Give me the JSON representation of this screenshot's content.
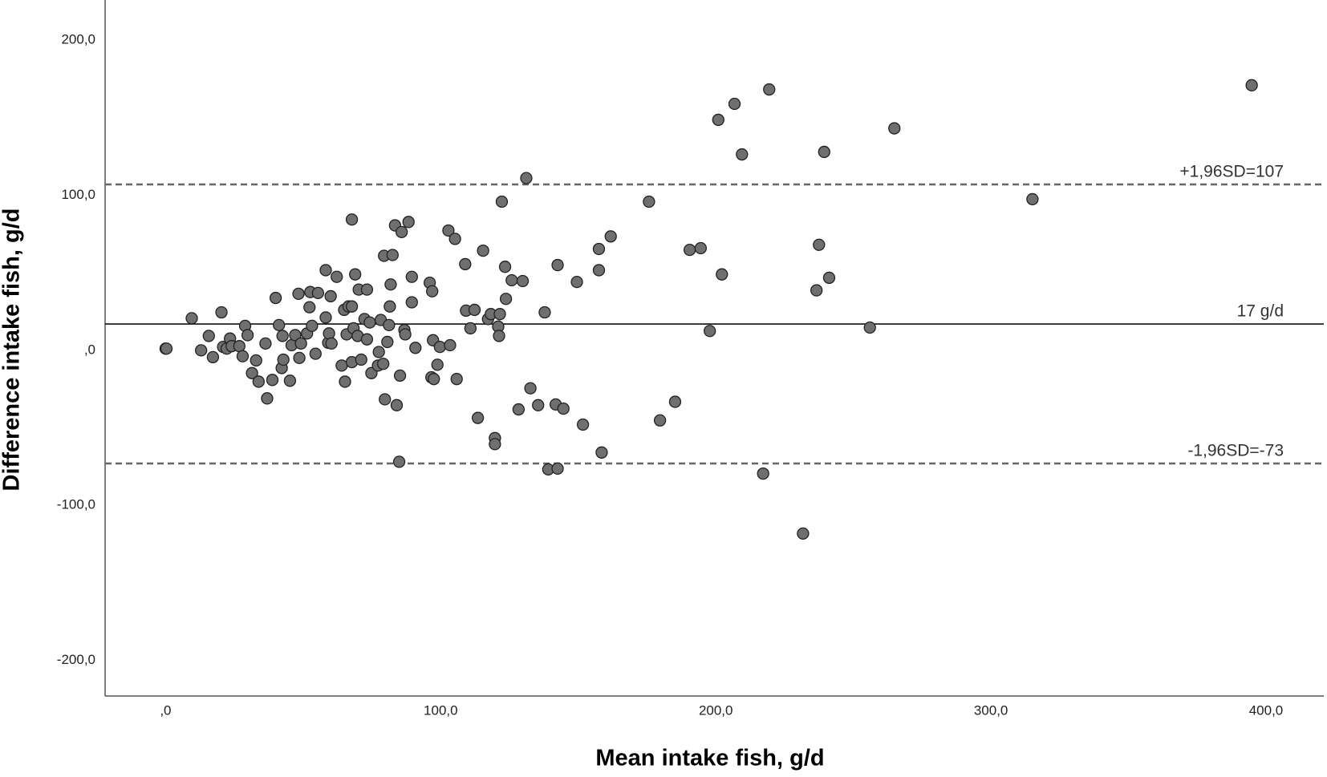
{
  "chart_data": {
    "type": "scatter",
    "x_label": "Mean intake fish, g/d",
    "y_label": "Difference intake fish, g/d",
    "color": "#6f6f6f",
    "xlim": [
      -22,
      421
    ],
    "ylim": [
      -223,
      226
    ],
    "xticks": [
      {
        "value": 0,
        "label": ",0"
      },
      {
        "value": 100,
        "label": "100,0"
      },
      {
        "value": 200,
        "label": "200,0"
      },
      {
        "value": 300,
        "label": "300,0"
      },
      {
        "value": 400,
        "label": "400,0"
      }
    ],
    "yticks": [
      {
        "value": -200,
        "label": "-200,0"
      },
      {
        "value": -100,
        "label": "-100,0"
      },
      {
        "value": 0,
        "label": ",0"
      },
      {
        "value": 100,
        "label": "100,0"
      },
      {
        "value": 200,
        "label": "200,0"
      }
    ],
    "reference_lines": [
      {
        "value": 107,
        "label": "+1,96SD=107",
        "style": "dashed"
      },
      {
        "value": 17,
        "label": "17 g/d",
        "style": "solid"
      },
      {
        "value": -73,
        "label": "-1,96SD=-73",
        "style": "dashed"
      }
    ],
    "x": [
      0,
      0.3,
      9.5,
      12.9,
      15.7,
      17.2,
      20.3,
      20.9,
      22.2,
      23.4,
      24.0,
      26.8,
      28.0,
      28.9,
      29.8,
      31.4,
      32.9,
      33.8,
      36.3,
      36.9,
      38.8,
      40.0,
      41.2,
      42.2,
      42.5,
      42.8,
      45.2,
      45.8,
      47.1,
      48.3,
      48.6,
      49.2,
      51.4,
      52.3,
      52.6,
      53.2,
      54.5,
      55.4,
      58.2,
      58.2,
      59.1,
      59.4,
      60.0,
      60.3,
      62.2,
      64.0,
      64.9,
      65.2,
      65.8,
      66.5,
      67.7,
      67.7,
      67.7,
      68.3,
      68.9,
      69.8,
      70.2,
      71.1,
      72.3,
      73.2,
      73.2,
      74.2,
      74.8,
      77.2,
      77.5,
      78.2,
      79.1,
      79.4,
      79.7,
      80.6,
      81.2,
      81.5,
      81.8,
      82.5,
      83.4,
      84.0,
      84.9,
      85.2,
      85.8,
      86.8,
      87.1,
      88.3,
      89.5,
      89.5,
      90.8,
      96.0,
      96.6,
      96.9,
      97.2,
      97.5,
      98.8,
      99.7,
      102.8,
      103.4,
      105.2,
      105.8,
      108.9,
      109.2,
      110.8,
      112.3,
      113.5,
      115.4,
      117.2,
      118.2,
      119.7,
      119.7,
      120.9,
      121.2,
      121.5,
      122.2,
      123.4,
      123.7,
      125.8,
      128.3,
      129.8,
      131.1,
      132.6,
      135.4,
      137.8,
      139.1,
      141.8,
      142.5,
      142.5,
      144.6,
      149.5,
      151.7,
      157.5,
      157.5,
      158.5,
      161.8,
      175.7,
      179.7,
      185.2,
      190.5,
      194.5,
      197.8,
      200.9,
      202.2,
      206.8,
      209.5,
      217.2,
      219.4,
      231.7,
      236.6,
      237.5,
      239.4,
      241.2,
      256.0,
      264.9,
      315.1,
      394.8
    ],
    "values": [
      1.1,
      1.1,
      20.7,
      0,
      9.3,
      -4.4,
      24.5,
      2.2,
      1.1,
      7.6,
      2.7,
      2.7,
      -3.8,
      15.8,
      9.8,
      -14.7,
      -6.5,
      -20.2,
      4.4,
      -31.0,
      -19.1,
      33.8,
      16.3,
      -11.4,
      9.3,
      -6.0,
      -19.6,
      3.3,
      9.8,
      36.5,
      -4.9,
      4.4,
      10.9,
      27.8,
      37.6,
      15.8,
      -2.2,
      37.0,
      51.7,
      21.2,
      4.9,
      10.9,
      34.9,
      4.4,
      47.4,
      -9.8,
      26.1,
      -20.2,
      10.3,
      28.3,
      84.4,
      -7.6,
      28.3,
      14.2,
      49.0,
      9.3,
      39.2,
      -6.0,
      20.2,
      39.2,
      7.1,
      18.0,
      -14.7,
      -9.8,
      -1.1,
      19.6,
      -8.7,
      61.0,
      -31.6,
      5.4,
      16.3,
      28.3,
      42.5,
      61.5,
      80.6,
      -35.4,
      -71.9,
      -16.3,
      76.3,
      13.1,
      10.3,
      82.8,
      47.4,
      31.0,
      1.6,
      43.6,
      -17.4,
      38.1,
      6.5,
      -18.5,
      -9.3,
      2.2,
      77.3,
      3.3,
      71.9,
      -18.5,
      55.6,
      25.6,
      14.2,
      26.1,
      -43.6,
      64.3,
      20.2,
      23.4,
      -56.6,
      -60.5,
      15.3,
      9.3,
      23.4,
      95.9,
      53.9,
      33.2,
      45.2,
      -38.1,
      44.7,
      111.1,
      -24.5,
      -35.4,
      24.5,
      -76.8,
      -34.9,
      55.0,
      -76.3,
      -37.6,
      44.1,
      -47.9,
      65.4,
      51.7,
      -65.9,
      73.5,
      95.9,
      -45.2,
      -33.2,
      64.8,
      65.9,
      12.5,
      148.7,
      49.0,
      159.0,
      126.4,
      -79.5,
      168.3,
      -118.2,
      38.7,
      68.1,
      128.0,
      46.8,
      14.7,
      143.2,
      97.5,
      171.0
    ]
  }
}
